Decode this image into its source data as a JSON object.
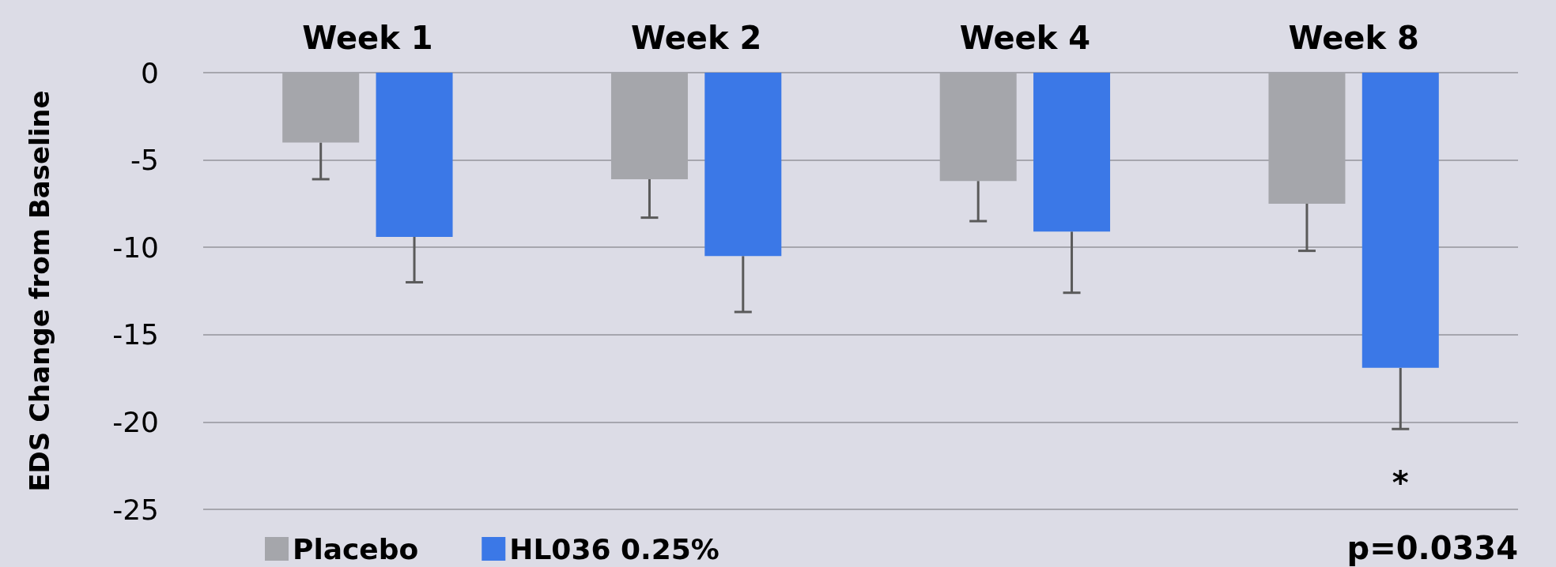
{
  "chart_data": {
    "type": "bar",
    "ylabel": "EDS Change from Baseline",
    "categories": [
      "Week 1",
      "Week 2",
      "Week 4",
      "Week 8"
    ],
    "series": [
      {
        "name": "Placebo",
        "color": "#a5a6ab",
        "values": [
          -4.0,
          -6.1,
          -6.2,
          -7.5
        ],
        "errors": [
          [
            -6.1,
            -4.0
          ],
          [
            -8.3,
            -6.1
          ],
          [
            -8.5,
            -6.2
          ],
          [
            -10.2,
            -7.5
          ]
        ]
      },
      {
        "name": "HL036 0.25%",
        "color": "#3b78e7",
        "values": [
          -9.4,
          -10.5,
          -9.1,
          -16.9
        ],
        "errors": [
          [
            -12.0,
            -9.4
          ],
          [
            -13.7,
            -10.5
          ],
          [
            -12.6,
            -9.1
          ],
          [
            -20.4,
            -16.9
          ]
        ]
      }
    ],
    "ylim": [
      -25,
      0
    ],
    "yticks": [
      -25,
      -20,
      -15,
      -10,
      -5,
      0
    ],
    "grid": "y",
    "legend": "bottom left",
    "annotations": [
      "*",
      "p=0.0334"
    ]
  }
}
